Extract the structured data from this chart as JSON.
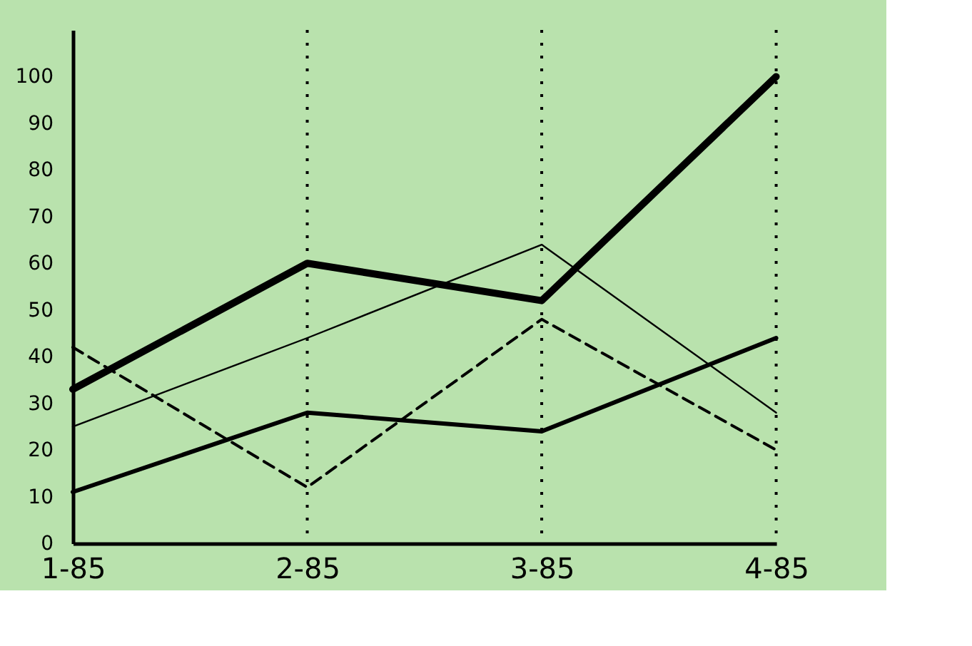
{
  "chart_data": {
    "type": "line",
    "categories": [
      "1-85",
      "2-85",
      "3-85",
      "4-85"
    ],
    "series": [
      {
        "color": "#000000",
        "values": [
          33,
          60,
          52,
          100
        ]
      },
      {
        "color": "#000000",
        "values": [
          25,
          44,
          64,
          28
        ]
      },
      {
        "color": "#000000",
        "values": [
          42,
          12,
          48,
          20
        ],
        "line_style": "dashed"
      },
      {
        "color": "#000000",
        "values": [
          11,
          28,
          24,
          44
        ]
      }
    ],
    "ylim": [
      0,
      110
    ],
    "yticks": [
      0,
      10,
      20,
      30,
      40,
      50,
      60,
      70,
      80,
      90,
      100
    ],
    "grid": "x",
    "marker": "none",
    "line_style": "solid"
  }
}
